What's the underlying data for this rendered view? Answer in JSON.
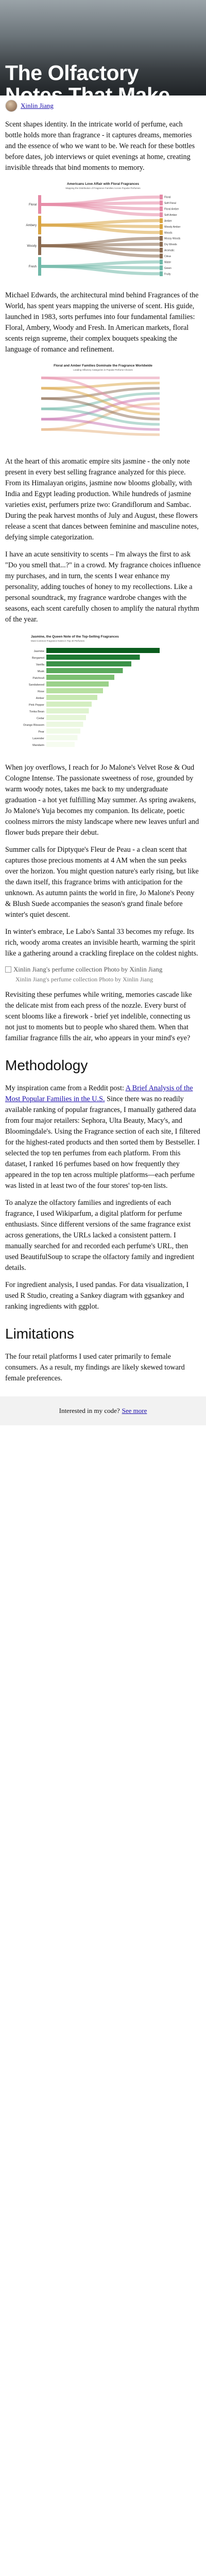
{
  "hero": {
    "title": "The Olfactory Notes That Make American Hearts Flutter",
    "author": "Xinlin Jiang"
  },
  "intro": [
    "Scent shapes identity. In the intricate world of perfume, each bottle holds more than fragrance - it captures dreams, memories and the essence of who we want to be. We reach for these bottles before dates, job interviews or quiet evenings at home, creating invisible threads that bind moments to memory.",
    "Michael Edwards, the architectural mind behind Fragrances of the World, has spent years mapping the universe of scent. His guide, launched in 1983, sorts perfumes into four fundamental families: Floral, Ambery, Woody and Fresh. In American markets, floral scents reign supreme, their complex bouquets speaking the language of romance and refinement."
  ],
  "chart1": {
    "title": "Americans Love Affair with Floral Fragrances",
    "subtitle": "Mapping the Distribution of Fragrance Families Across Popular Perfumes",
    "left_nodes": [
      "Floral",
      "Ambery",
      "Woody",
      "Fresh"
    ],
    "right_nodes": [
      "Floral",
      "Soft Floral",
      "Floral Amber",
      "Soft Amber",
      "Amber",
      "Woody Amber",
      "Woods",
      "Mossy Woods",
      "Dry Woods",
      "Aromatic",
      "Citrus",
      "Water",
      "Green",
      "Fruity"
    ],
    "colors": [
      "#e58aa6",
      "#d9a441",
      "#8a6a4f",
      "#6fb8a8"
    ]
  },
  "chart2": {
    "title": "Floral and Amber Families Dominate the Fragrance Worldwide",
    "subtitle": "Leading Olfactory Categories in Popular Perfume Choices"
  },
  "body_a": [
    "At the heart of this aromatic empire sits jasmine - the only note present in every best selling fragrance analyzed for this piece. From its Himalayan origins, jasmine now blooms globally, with India and Egypt leading production. While hundreds of jasmine varieties exist, perfumers prize two: Grandiflorum and Sambac. During the peak harvest months of July and August, these flowers release a scent that dances between feminine and masculine notes, defying simple categorization.",
    "I have an acute sensitivity to scents – I'm always the first to ask \"Do you smell that...?\" in a crowd. My fragrance choices influence my purchases, and in turn, the scents I wear enhance my personality, adding touches of honey to my recollections. Like a personal soundtrack, my fragrance wardrobe changes with the seasons, each scent carefully chosen to amplify the natural rhythm of the year."
  ],
  "chart3": {
    "title": "Jasmine, the Queen Note of the Top-Selling Fragrances",
    "subtitle": "Most Common Fragrance Notes in Top 40 Perfumes",
    "categories": [
      "Jasmine",
      "Bergamot",
      "Vanilla",
      "Musk",
      "Patchouli",
      "Sandalwood",
      "Rose",
      "Amber",
      "Pink Pepper",
      "Tonka Bean",
      "Cedar",
      "Orange Blossom",
      "Pear",
      "Lavender",
      "Mandarin"
    ],
    "values": [
      40,
      33,
      30,
      27,
      24,
      22,
      20,
      18,
      16,
      15,
      14,
      13,
      12,
      11,
      10
    ],
    "colors": [
      "#0b5d1e",
      "#1f7a33",
      "#3a9147",
      "#5aa95c",
      "#7cbf72",
      "#9bd18a",
      "#b6dfa0",
      "#c7e8b2",
      "#d4eec1",
      "#dff3cf",
      "#e6f6d8",
      "#ecf8e1",
      "#f0fae7",
      "#f3fbec",
      "#f6fcf0"
    ]
  },
  "body_b": [
    "When joy overflows, I reach for Jo Malone's Velvet Rose & Oud Cologne Intense. The passionate sweetness of rose, grounded by warm woody notes, takes me back to my undergraduate graduation - a hot yet fulfilling May summer. As spring awakens, Jo Malone's Yuja becomes my companion. Its delicate, poetic coolness mirrors the misty landscape where new leaves unfurl and flower buds prepare their debut.",
    "Summer calls for Diptyque's Fleur de Peau - a clean scent that captures those precious moments at 4 AM when the sun peeks over the horizon. You might question nature's early rising, but like the dawn itself, this fragrance brims with anticipation for the unknown. As autumn paints the world in fire, Jo Malone's Peony & Blush Suede accompanies the season's grand finale before winter's quiet descent.",
    "In winter's embrace, Le Labo's Santal 33 becomes my refuge. Its rich, woody aroma creates an invisible hearth, warming the spirit like a gathering around a crackling fireplace on the coldest nights."
  ],
  "photo": {
    "alt": "Xinlin Jiang's perfume collection Photo by Xinlin Jiang",
    "caption": "Xinlin Jiang's perfume collection Photo by Xinlin Jiang"
  },
  "body_c": "Revisiting these perfumes while writing, memories cascade like the delicate mist from each press of the nozzle. Every burst of scent blooms like a firework - brief yet indelible, connecting us not just to moments but to people who shared them. When that familiar fragrance fills the air, who appears in your mind's eye?",
  "methodology": {
    "heading": "Methodology",
    "p1_before": "My inspiration came from a Reddit post: ",
    "p1_link": "A Brief Analysis of the Most Popular Families in the U.S.",
    "p1_after": " Since there was no readily available ranking of popular fragrances, I manually gathered data from four major retailers: Sephora, Ulta Beauty, Macy's, and Bloomingdale's. Using the Fragrance section of each site, I filtered for the highest-rated products and then sorted them by Bestseller. I selected the top ten perfumes from each platform. From this dataset, I ranked 16 perfumes based on how frequently they appeared in the top ten across multiple platforms—each perfume was listed in at least two of the four stores' top-ten lists.",
    "p2": "To analyze the olfactory families and ingredients of each fragrance, I used Wikiparfum, a digital platform for perfume enthusiasts. Since different versions of the same fragrance exist across generations, the URLs lacked a consistent pattern. I manually searched for and recorded each perfume's URL, then used BeautifulSoup to scrape the olfactory family and ingredient details.",
    "p3": "For ingredient analysis, I used pandas. For data visualization, I used R Studio, creating a Sankey diagram with ggsankey and ranking ingredients with ggplot."
  },
  "limitations": {
    "heading": "Limitations",
    "p1": "The four retail platforms I used cater primarily to female consumers. As a result, my findings are likely skewed toward female preferences."
  },
  "footer": {
    "text": "Interested in my code?",
    "link": "See more"
  }
}
